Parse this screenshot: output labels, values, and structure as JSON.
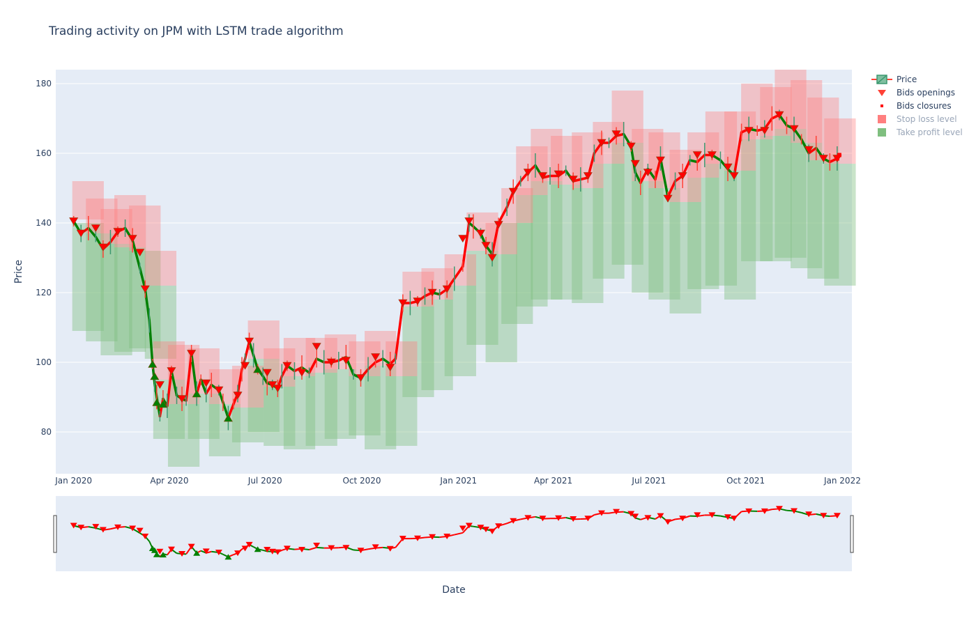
{
  "chart_data": {
    "type": "candlestick",
    "title": "Trading activity on JPM with LSTM trade algorithm",
    "xlabel": "Date",
    "ylabel": "Price",
    "ylim": [
      68,
      184
    ],
    "xlim": [
      "2019-12-15",
      "2022-01-10"
    ],
    "y_ticks": [
      80,
      100,
      120,
      140,
      160,
      180
    ],
    "x_ticks": [
      {
        "date": "2020-01-01",
        "label": "Jan 2020"
      },
      {
        "date": "2020-04-01",
        "label": "Apr 2020"
      },
      {
        "date": "2020-07-01",
        "label": "Jul 2020"
      },
      {
        "date": "2020-10-01",
        "label": "Oct 2020"
      },
      {
        "date": "2021-01-01",
        "label": "Jan 2021"
      },
      {
        "date": "2021-04-01",
        "label": "Apr 2021"
      },
      {
        "date": "2021-07-01",
        "label": "Jul 2021"
      },
      {
        "date": "2021-10-01",
        "label": "Oct 2021"
      },
      {
        "date": "2022-01-01",
        "label": "Jan 2022"
      }
    ],
    "grid": true,
    "legend_position": "top-right",
    "rangeslider": true,
    "colors": {
      "increasing": "#3d9970",
      "decreasing": "#ff4136",
      "bid_up": "#008000",
      "bid_down": "#ff0000",
      "stop_loss": "#ff7f7f",
      "take_profit": "#7fbf7f",
      "plot_bg": "#e5ecf6",
      "grid": "#ffffff",
      "text": "#2a3f5f"
    },
    "legend": [
      {
        "name": "Price",
        "symbol": "candle"
      },
      {
        "name": "Bids openings",
        "symbol": "triangle-down"
      },
      {
        "name": "Bids closures",
        "symbol": "square"
      },
      {
        "name": "Stop loss level",
        "symbol": "box-red",
        "dimmed": true
      },
      {
        "name": "Take profit level",
        "symbol": "box-green",
        "dimmed": true
      }
    ],
    "price_path": [
      [
        "2020-01-01",
        140.5
      ],
      [
        "2020-01-08",
        137
      ],
      [
        "2020-01-15",
        138.5
      ],
      [
        "2020-01-22",
        136
      ],
      [
        "2020-01-29",
        132.5
      ],
      [
        "2020-02-05",
        134.5
      ],
      [
        "2020-02-12",
        137.5
      ],
      [
        "2020-02-19",
        138.5
      ],
      [
        "2020-02-26",
        135
      ],
      [
        "2020-03-04",
        127
      ],
      [
        "2020-03-09",
        121
      ],
      [
        "2020-03-13",
        112
      ],
      [
        "2020-03-16",
        99.5
      ],
      [
        "2020-03-18",
        94
      ],
      [
        "2020-03-20",
        90
      ],
      [
        "2020-03-23",
        84.5
      ],
      [
        "2020-03-26",
        89.5
      ],
      [
        "2020-03-30",
        87.5
      ],
      [
        "2020-04-03",
        97.5
      ],
      [
        "2020-04-08",
        90.5
      ],
      [
        "2020-04-13",
        89.5
      ],
      [
        "2020-04-17",
        89
      ],
      [
        "2020-04-22",
        102.5
      ],
      [
        "2020-04-27",
        91
      ],
      [
        "2020-05-01",
        95
      ],
      [
        "2020-05-06",
        91
      ],
      [
        "2020-05-11",
        93.5
      ],
      [
        "2020-05-18",
        92
      ],
      [
        "2020-05-22",
        88.5
      ],
      [
        "2020-05-27",
        84
      ],
      [
        "2020-06-01",
        88
      ],
      [
        "2020-06-05",
        91
      ],
      [
        "2020-06-09",
        98
      ],
      [
        "2020-06-12",
        101
      ],
      [
        "2020-06-16",
        106
      ],
      [
        "2020-06-20",
        102
      ],
      [
        "2020-06-24",
        98
      ],
      [
        "2020-06-29",
        96
      ],
      [
        "2020-07-03",
        94
      ],
      [
        "2020-07-08",
        93.5
      ],
      [
        "2020-07-13",
        92.5
      ],
      [
        "2020-07-17",
        96
      ],
      [
        "2020-07-22",
        99
      ],
      [
        "2020-07-29",
        97.5
      ],
      [
        "2020-08-05",
        98.5
      ],
      [
        "2020-08-12",
        97
      ],
      [
        "2020-08-19",
        101
      ],
      [
        "2020-08-26",
        100
      ],
      [
        "2020-09-02",
        100
      ],
      [
        "2020-09-09",
        100.5
      ],
      [
        "2020-09-16",
        101.5
      ],
      [
        "2020-09-23",
        96.5
      ],
      [
        "2020-09-30",
        95.5
      ],
      [
        "2020-10-07",
        98
      ],
      [
        "2020-10-14",
        100
      ],
      [
        "2020-10-21",
        101
      ],
      [
        "2020-10-28",
        99.5
      ],
      [
        "2020-11-02",
        101
      ],
      [
        "2020-11-09",
        117
      ],
      [
        "2020-11-16",
        117
      ],
      [
        "2020-11-23",
        117.5
      ],
      [
        "2020-11-30",
        119
      ],
      [
        "2020-12-07",
        120
      ],
      [
        "2020-12-14",
        119.5
      ],
      [
        "2020-12-21",
        121
      ],
      [
        "2020-12-28",
        124
      ],
      [
        "2021-01-05",
        127.5
      ],
      [
        "2021-01-11",
        140
      ],
      [
        "2021-01-15",
        139
      ],
      [
        "2021-01-22",
        137
      ],
      [
        "2021-01-27",
        133.5
      ],
      [
        "2021-02-02",
        131
      ],
      [
        "2021-02-08",
        140
      ],
      [
        "2021-02-16",
        144.5
      ],
      [
        "2021-02-22",
        149
      ],
      [
        "2021-03-01",
        152
      ],
      [
        "2021-03-08",
        154.5
      ],
      [
        "2021-03-15",
        156.5
      ],
      [
        "2021-03-22",
        153
      ],
      [
        "2021-03-29",
        153.5
      ],
      [
        "2021-04-06",
        153.5
      ],
      [
        "2021-04-13",
        155
      ],
      [
        "2021-04-20",
        152
      ],
      [
        "2021-04-27",
        152.5
      ],
      [
        "2021-05-04",
        153
      ],
      [
        "2021-05-10",
        160
      ],
      [
        "2021-05-17",
        163
      ],
      [
        "2021-05-24",
        163
      ],
      [
        "2021-05-31",
        165
      ],
      [
        "2021-06-07",
        165.5
      ],
      [
        "2021-06-14",
        162
      ],
      [
        "2021-06-18",
        154.5
      ],
      [
        "2021-06-23",
        151.5
      ],
      [
        "2021-06-30",
        155.5
      ],
      [
        "2021-07-07",
        152.5
      ],
      [
        "2021-07-12",
        158.5
      ],
      [
        "2021-07-19",
        147.5
      ],
      [
        "2021-07-26",
        152
      ],
      [
        "2021-08-02",
        153.5
      ],
      [
        "2021-08-09",
        158
      ],
      [
        "2021-08-16",
        157.5
      ],
      [
        "2021-08-23",
        159.5
      ],
      [
        "2021-08-30",
        159.5
      ],
      [
        "2021-09-07",
        158
      ],
      [
        "2021-09-14",
        155.5
      ],
      [
        "2021-09-20",
        153.5
      ],
      [
        "2021-09-27",
        166
      ],
      [
        "2021-10-04",
        167
      ],
      [
        "2021-10-12",
        166.5
      ],
      [
        "2021-10-19",
        167
      ],
      [
        "2021-10-26",
        170
      ],
      [
        "2021-11-02",
        171
      ],
      [
        "2021-11-09",
        168
      ],
      [
        "2021-11-16",
        167
      ],
      [
        "2021-11-23",
        164
      ],
      [
        "2021-11-30",
        160
      ],
      [
        "2021-12-07",
        161.5
      ],
      [
        "2021-12-14",
        158.5
      ],
      [
        "2021-12-20",
        157.5
      ],
      [
        "2021-12-27",
        158.5
      ]
    ],
    "stop_loss_bands": [
      [
        "2020-01-01",
        141,
        152
      ],
      [
        "2020-01-14",
        137,
        147
      ],
      [
        "2020-01-28",
        134,
        144
      ],
      [
        "2020-02-10",
        133,
        148
      ],
      [
        "2020-02-24",
        132,
        145
      ],
      [
        "2020-03-10",
        122,
        132
      ],
      [
        "2020-03-18",
        95,
        106
      ],
      [
        "2020-04-01",
        88,
        105
      ],
      [
        "2020-04-20",
        91,
        104
      ],
      [
        "2020-05-10",
        88,
        98
      ],
      [
        "2020-06-01",
        87,
        99
      ],
      [
        "2020-06-16",
        101,
        112
      ],
      [
        "2020-07-01",
        93,
        104
      ],
      [
        "2020-07-20",
        96,
        107
      ],
      [
        "2020-08-10",
        97,
        107
      ],
      [
        "2020-08-28",
        98,
        108
      ],
      [
        "2020-09-20",
        96,
        106
      ],
      [
        "2020-10-05",
        99,
        109
      ],
      [
        "2020-10-25",
        96,
        106
      ],
      [
        "2020-11-10",
        116,
        126
      ],
      [
        "2020-11-28",
        118,
        127
      ],
      [
        "2020-12-20",
        122,
        131
      ],
      [
        "2021-01-10",
        132,
        143
      ],
      [
        "2021-01-28",
        131,
        140
      ],
      [
        "2021-02-12",
        140,
        150
      ],
      [
        "2021-02-26",
        148,
        162
      ],
      [
        "2021-03-12",
        152,
        167
      ],
      [
        "2021-03-31",
        151,
        165
      ],
      [
        "2021-04-20",
        150,
        166
      ],
      [
        "2021-05-10",
        157,
        169
      ],
      [
        "2021-05-28",
        163,
        178
      ],
      [
        "2021-06-16",
        152,
        167
      ],
      [
        "2021-07-02",
        150,
        166
      ],
      [
        "2021-07-22",
        146,
        161
      ],
      [
        "2021-08-08",
        153,
        166
      ],
      [
        "2021-08-25",
        157,
        172
      ],
      [
        "2021-09-12",
        155,
        172
      ],
      [
        "2021-09-28",
        164,
        180
      ],
      [
        "2021-10-16",
        165,
        179
      ],
      [
        "2021-10-30",
        167,
        184
      ],
      [
        "2021-11-14",
        163,
        181
      ],
      [
        "2021-11-30",
        158,
        176
      ],
      [
        "2021-12-16",
        157,
        170
      ]
    ],
    "take_profit_bands": [
      [
        "2020-01-01",
        109,
        140
      ],
      [
        "2020-01-14",
        106,
        137
      ],
      [
        "2020-01-28",
        102,
        134
      ],
      [
        "2020-02-10",
        103,
        133
      ],
      [
        "2020-02-24",
        104,
        132
      ],
      [
        "2020-03-10",
        101,
        122
      ],
      [
        "2020-03-18",
        78,
        95
      ],
      [
        "2020-04-01",
        70,
        88
      ],
      [
        "2020-04-20",
        78,
        91
      ],
      [
        "2020-05-10",
        73,
        88
      ],
      [
        "2020-06-01",
        77,
        87
      ],
      [
        "2020-06-16",
        80,
        101
      ],
      [
        "2020-07-01",
        76,
        93
      ],
      [
        "2020-07-20",
        75,
        96
      ],
      [
        "2020-08-10",
        76,
        97
      ],
      [
        "2020-08-28",
        78,
        98
      ],
      [
        "2020-09-20",
        79,
        96
      ],
      [
        "2020-10-05",
        75,
        99
      ],
      [
        "2020-10-25",
        76,
        96
      ],
      [
        "2020-11-10",
        90,
        116
      ],
      [
        "2020-11-28",
        92,
        118
      ],
      [
        "2020-12-20",
        96,
        122
      ],
      [
        "2021-01-10",
        105,
        132
      ],
      [
        "2021-01-28",
        100,
        131
      ],
      [
        "2021-02-12",
        111,
        140
      ],
      [
        "2021-02-26",
        116,
        148
      ],
      [
        "2021-03-12",
        118,
        152
      ],
      [
        "2021-03-31",
        118,
        151
      ],
      [
        "2021-04-20",
        117,
        150
      ],
      [
        "2021-05-10",
        124,
        157
      ],
      [
        "2021-05-28",
        128,
        163
      ],
      [
        "2021-06-16",
        120,
        152
      ],
      [
        "2021-07-02",
        118,
        150
      ],
      [
        "2021-07-22",
        114,
        146
      ],
      [
        "2021-08-08",
        121,
        153
      ],
      [
        "2021-08-25",
        122,
        157
      ],
      [
        "2021-09-12",
        118,
        155
      ],
      [
        "2021-09-28",
        129,
        164
      ],
      [
        "2021-10-16",
        129,
        165
      ],
      [
        "2021-10-30",
        130,
        167
      ],
      [
        "2021-11-14",
        127,
        163
      ],
      [
        "2021-11-30",
        124,
        158
      ],
      [
        "2021-12-16",
        122,
        157
      ]
    ],
    "bids_openings": [
      [
        "2020-01-01",
        140.5,
        "down"
      ],
      [
        "2020-01-08",
        137,
        "down"
      ],
      [
        "2020-01-22",
        138.5,
        "down"
      ],
      [
        "2020-01-29",
        133,
        "down"
      ],
      [
        "2020-02-12",
        137.5,
        "down"
      ],
      [
        "2020-02-26",
        135.5,
        "down"
      ],
      [
        "2020-03-04",
        131.5,
        "down"
      ],
      [
        "2020-03-09",
        121,
        "down"
      ],
      [
        "2020-03-16",
        99.5,
        "up"
      ],
      [
        "2020-03-18",
        96,
        "up"
      ],
      [
        "2020-03-20",
        88.5,
        "up"
      ],
      [
        "2020-03-23",
        93.5,
        "down"
      ],
      [
        "2020-03-26",
        88,
        "up"
      ],
      [
        "2020-04-03",
        97.5,
        "down"
      ],
      [
        "2020-04-13",
        89.5,
        "down"
      ],
      [
        "2020-04-22",
        102.5,
        "down"
      ],
      [
        "2020-04-27",
        91,
        "up"
      ],
      [
        "2020-05-06",
        94,
        "down"
      ],
      [
        "2020-05-18",
        92,
        "down"
      ],
      [
        "2020-05-27",
        84,
        "up"
      ],
      [
        "2020-06-05",
        90.5,
        "down"
      ],
      [
        "2020-06-12",
        99,
        "down"
      ],
      [
        "2020-06-16",
        106,
        "down"
      ],
      [
        "2020-06-24",
        98,
        "up"
      ],
      [
        "2020-07-03",
        97,
        "down"
      ],
      [
        "2020-07-08",
        93.5,
        "down"
      ],
      [
        "2020-07-13",
        92.5,
        "down"
      ],
      [
        "2020-07-22",
        99,
        "down"
      ],
      [
        "2020-08-05",
        97,
        "down"
      ],
      [
        "2020-08-19",
        104.5,
        "down"
      ],
      [
        "2020-09-02",
        100,
        "down"
      ],
      [
        "2020-09-16",
        100.5,
        "down"
      ],
      [
        "2020-09-30",
        95.5,
        "down"
      ],
      [
        "2020-10-14",
        101.5,
        "down"
      ],
      [
        "2020-10-28",
        98.5,
        "down"
      ],
      [
        "2020-11-09",
        117,
        "down"
      ],
      [
        "2020-11-23",
        117.5,
        "down"
      ],
      [
        "2020-12-07",
        120,
        "down"
      ],
      [
        "2020-12-21",
        121,
        "down"
      ],
      [
        "2021-01-05",
        135.5,
        "down"
      ],
      [
        "2021-01-11",
        140.5,
        "down"
      ],
      [
        "2021-01-22",
        137,
        "down"
      ],
      [
        "2021-01-27",
        133.5,
        "down"
      ],
      [
        "2021-02-02",
        130,
        "down"
      ],
      [
        "2021-02-08",
        139.5,
        "down"
      ],
      [
        "2021-02-22",
        149,
        "down"
      ],
      [
        "2021-03-08",
        154.5,
        "down"
      ],
      [
        "2021-03-22",
        153.5,
        "down"
      ],
      [
        "2021-04-06",
        154,
        "down"
      ],
      [
        "2021-04-20",
        152.5,
        "down"
      ],
      [
        "2021-05-04",
        153.5,
        "down"
      ],
      [
        "2021-05-17",
        163,
        "down"
      ],
      [
        "2021-05-31",
        165.5,
        "down"
      ],
      [
        "2021-06-14",
        162,
        "down"
      ],
      [
        "2021-06-18",
        157,
        "down"
      ],
      [
        "2021-06-30",
        154.5,
        "down"
      ],
      [
        "2021-07-12",
        158,
        "down"
      ],
      [
        "2021-07-19",
        147,
        "down"
      ],
      [
        "2021-08-02",
        153.5,
        "down"
      ],
      [
        "2021-08-16",
        159.5,
        "down"
      ],
      [
        "2021-08-30",
        159.5,
        "down"
      ],
      [
        "2021-09-14",
        156,
        "down"
      ],
      [
        "2021-09-20",
        153.5,
        "down"
      ],
      [
        "2021-10-04",
        166.5,
        "down"
      ],
      [
        "2021-10-19",
        166.5,
        "down"
      ],
      [
        "2021-11-02",
        171,
        "down"
      ],
      [
        "2021-11-16",
        167,
        "down"
      ],
      [
        "2021-11-30",
        161,
        "down"
      ],
      [
        "2021-12-14",
        158.5,
        "down"
      ],
      [
        "2021-12-27",
        158.5,
        "down"
      ]
    ],
    "bids_closures": [
      [
        "2021-12-27",
        158.5
      ],
      [
        "2021-12-29",
        159.5
      ]
    ]
  }
}
